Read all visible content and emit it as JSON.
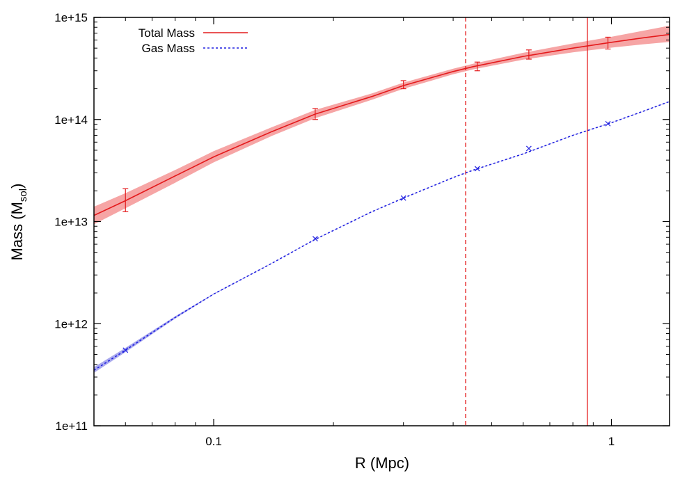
{
  "chart_data": {
    "type": "line",
    "title": "",
    "xlabel": "R (Mpc)",
    "ylabel_main": "Mass (M",
    "ylabel_sub": "sol",
    "ylabel_close": ")",
    "xscale": "log",
    "yscale": "log",
    "xlim": [
      0.05,
      1.4
    ],
    "ylim": [
      100000000000.0,
      1000000000000000.0
    ],
    "grid": false,
    "legend_position": "top-left",
    "x_ticks": [
      {
        "value": 0.1,
        "label": "0.1"
      },
      {
        "value": 1,
        "label": "1"
      }
    ],
    "y_ticks": [
      {
        "value": 100000000000.0,
        "label": "1e+11"
      },
      {
        "value": 1000000000000.0,
        "label": "1e+12"
      },
      {
        "value": 10000000000000.0,
        "label": "1e+13"
      },
      {
        "value": 100000000000000.0,
        "label": "1e+14"
      },
      {
        "value": 1000000000000000.0,
        "label": "1e+15"
      }
    ],
    "series": [
      {
        "name": "Total Mass",
        "color": "#e41a1c",
        "style": "solid",
        "band_color": "#f6a5a5",
        "curve": [
          {
            "x": 0.05,
            "y": 11500000000000.0,
            "lo": 9400000000000.0,
            "hi": 14000000000000.0
          },
          {
            "x": 0.06,
            "y": 16000000000000.0,
            "lo": 13500000000000.0,
            "hi": 19000000000000.0
          },
          {
            "x": 0.08,
            "y": 28000000000000.0,
            "lo": 24000000000000.0,
            "hi": 32000000000000.0
          },
          {
            "x": 0.1,
            "y": 43000000000000.0,
            "lo": 38000000000000.0,
            "hi": 49000000000000.0
          },
          {
            "x": 0.14,
            "y": 76000000000000.0,
            "lo": 69000000000000.0,
            "hi": 84000000000000.0
          },
          {
            "x": 0.18,
            "y": 113000000000000.0,
            "lo": 103000000000000.0,
            "hi": 124000000000000.0
          },
          {
            "x": 0.25,
            "y": 168000000000000.0,
            "lo": 156000000000000.0,
            "hi": 180000000000000.0
          },
          {
            "x": 0.3,
            "y": 215000000000000.0,
            "lo": 200000000000000.0,
            "hi": 230000000000000.0
          },
          {
            "x": 0.4,
            "y": 295000000000000.0,
            "lo": 277000000000000.0,
            "hi": 314000000000000.0
          },
          {
            "x": 0.45,
            "y": 330000000000000.0,
            "lo": 310000000000000.0,
            "hi": 352000000000000.0
          },
          {
            "x": 0.6,
            "y": 415000000000000.0,
            "lo": 385000000000000.0,
            "hi": 450000000000000.0
          },
          {
            "x": 0.8,
            "y": 500000000000000.0,
            "lo": 455000000000000.0,
            "hi": 555000000000000.0
          },
          {
            "x": 1.0,
            "y": 570000000000000.0,
            "lo": 505000000000000.0,
            "hi": 645000000000000.0
          },
          {
            "x": 1.2,
            "y": 630000000000000.0,
            "lo": 545000000000000.0,
            "hi": 740000000000000.0
          },
          {
            "x": 1.4,
            "y": 680000000000000.0,
            "lo": 575000000000000.0,
            "hi": 830000000000000.0
          }
        ],
        "points": [
          {
            "x": 0.06,
            "y": 16000000000000.0,
            "ylo": 12500000000000.0,
            "yhi": 21000000000000.0
          },
          {
            "x": 0.18,
            "y": 113000000000000.0,
            "ylo": 100000000000000.0,
            "yhi": 128000000000000.0
          },
          {
            "x": 0.3,
            "y": 220000000000000.0,
            "ylo": 200000000000000.0,
            "yhi": 240000000000000.0
          },
          {
            "x": 0.46,
            "y": 330000000000000.0,
            "ylo": 300000000000000.0,
            "yhi": 365000000000000.0
          },
          {
            "x": 0.62,
            "y": 430000000000000.0,
            "ylo": 390000000000000.0,
            "yhi": 480000000000000.0
          },
          {
            "x": 0.98,
            "y": 560000000000000.0,
            "ylo": 490000000000000.0,
            "yhi": 640000000000000.0
          }
        ]
      },
      {
        "name": "Gas Mass",
        "color": "#1f1fe0",
        "style": "dotted",
        "band_color": "#a9a9ee",
        "curve": [
          {
            "x": 0.05,
            "y": 350000000000.0,
            "lo": 330000000000.0,
            "hi": 375000000000.0
          },
          {
            "x": 0.06,
            "y": 550000000000.0,
            "lo": 525000000000.0,
            "hi": 580000000000.0
          },
          {
            "x": 0.08,
            "y": 1150000000000.0,
            "lo": 1120000000000.0,
            "hi": 1180000000000.0
          },
          {
            "x": 0.1,
            "y": 1950000000000.0,
            "lo": 1930000000000.0,
            "hi": 1970000000000.0
          },
          {
            "x": 0.14,
            "y": 3900000000000.0,
            "lo": 3880000000000.0,
            "hi": 3920000000000.0
          },
          {
            "x": 0.18,
            "y": 6700000000000.0,
            "lo": 6670000000000.0,
            "hi": 6730000000000.0
          },
          {
            "x": 0.25,
            "y": 12500000000000.0,
            "lo": 12450000000000.0,
            "hi": 12550000000000.0
          },
          {
            "x": 0.3,
            "y": 17000000000000.0,
            "lo": 16950000000000.0,
            "hi": 17050000000000.0
          },
          {
            "x": 0.4,
            "y": 27000000000000.0,
            "lo": 26900000000000.0,
            "hi": 27100000000000.0
          },
          {
            "x": 0.45,
            "y": 32000000000000.0,
            "lo": 31900000000000.0,
            "hi": 32100000000000.0
          },
          {
            "x": 0.6,
            "y": 46000000000000.0,
            "lo": 45800000000000.0,
            "hi": 46200000000000.0
          },
          {
            "x": 0.8,
            "y": 70000000000000.0,
            "lo": 69700000000000.0,
            "hi": 70300000000000.0
          },
          {
            "x": 1.0,
            "y": 93000000000000.0,
            "lo": 92600000000000.0,
            "hi": 93400000000000.0
          },
          {
            "x": 1.2,
            "y": 120000000000000.0,
            "lo": 119500000000000.0,
            "hi": 120500000000000.0
          },
          {
            "x": 1.4,
            "y": 150000000000000.0,
            "lo": 149000000000000.0,
            "hi": 151000000000000.0
          }
        ],
        "points": [
          {
            "x": 0.06,
            "y": 550000000000.0
          },
          {
            "x": 0.18,
            "y": 6800000000000.0
          },
          {
            "x": 0.3,
            "y": 17000000000000.0
          },
          {
            "x": 0.46,
            "y": 33000000000000.0
          },
          {
            "x": 0.62,
            "y": 52000000000000.0
          },
          {
            "x": 0.98,
            "y": 91000000000000.0
          }
        ]
      }
    ],
    "vertical_lines": [
      {
        "x": 0.43,
        "color": "#e41a1c",
        "style": "dashed"
      },
      {
        "x": 0.87,
        "color": "#e41a1c",
        "style": "solid"
      }
    ]
  }
}
